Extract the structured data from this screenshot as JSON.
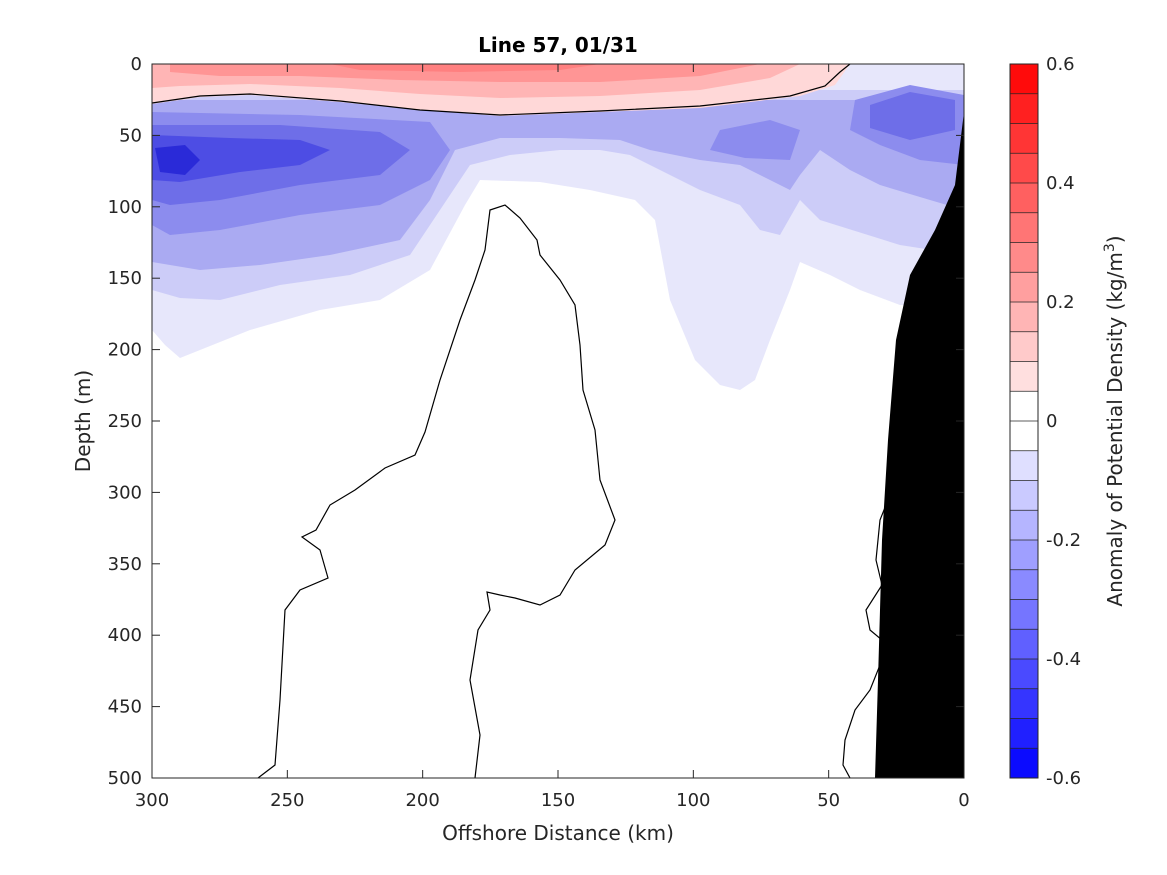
{
  "chart_data": {
    "type": "heatmap",
    "title": "Line 57, 01/31",
    "xlabel": "Offshore Distance (km)",
    "ylabel": "Depth (m)",
    "x_ticks": [
      300,
      250,
      200,
      150,
      100,
      50,
      0
    ],
    "y_ticks": [
      0,
      50,
      100,
      150,
      200,
      250,
      300,
      350,
      400,
      450,
      500
    ],
    "xlim": [
      300,
      0
    ],
    "ylim": [
      0,
      500
    ],
    "colorbar": {
      "label_prefix": "Anomaly of Potential Density (kg/m",
      "label_sup": "3",
      "label_suffix": ")",
      "range": [
        -0.6,
        0.6
      ],
      "ticks": [
        0.6,
        0.4,
        0.2,
        0,
        -0.2,
        -0.4,
        -0.6
      ],
      "tick_labels": [
        "0.6",
        "0.4",
        "0.2",
        "0",
        "-0.2",
        "-0.4",
        "-0.6"
      ],
      "levels": 24,
      "colormap": "blue-white-red"
    },
    "contour_level": 0,
    "features": {
      "surface_anomaly": "positive (up to ~0.2) in upper ~0-35 m",
      "subsurface_anomaly": "negative (to ~-0.45) near 60-80 m, offshore 240-300 km",
      "bathymetry": "black wedge near shore, 0-35 km"
    },
    "colors": {
      "positive": "#ff0000",
      "negative": "#0000ff",
      "zero": "#ffffff",
      "land": "#000000"
    }
  }
}
